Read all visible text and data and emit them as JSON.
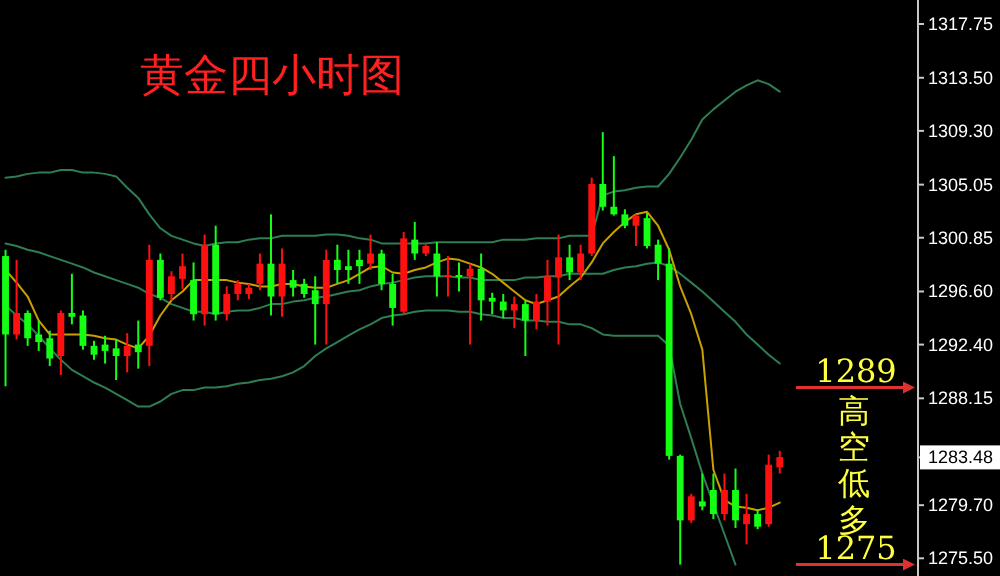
{
  "chart_data": {
    "type": "candlestick",
    "title": "黄金四小时图",
    "tick_labels": "y",
    "categories": [
      null,
      null,
      null,
      null,
      null,
      null,
      null,
      null,
      null,
      null,
      null,
      null,
      null,
      null,
      null,
      null,
      null,
      null,
      null,
      null,
      null,
      null,
      null,
      null,
      null,
      null,
      null,
      null,
      null,
      null,
      null,
      null,
      null,
      null,
      null,
      null,
      null,
      null,
      null,
      null,
      null,
      null,
      null,
      null,
      null,
      null,
      null,
      null,
      null,
      null,
      null,
      null,
      null,
      null,
      null,
      null,
      null,
      null,
      null,
      null,
      null,
      null,
      null,
      null,
      null,
      null,
      null,
      null,
      null,
      null,
      null,
      null,
      null,
      null,
      null,
      null,
      null,
      null,
      null,
      null,
      null,
      null,
      null
    ],
    "ylim": [
      1274.1,
      1319.65
    ],
    "yticks": [
      {
        "value": 1317.75,
        "label": "1317.75"
      },
      {
        "value": 1313.5,
        "label": "1313.50"
      },
      {
        "value": 1309.3,
        "label": "1309.30"
      },
      {
        "value": 1305.05,
        "label": "1305.05"
      },
      {
        "value": 1300.85,
        "label": "1300.85"
      },
      {
        "value": 1296.6,
        "label": "1296.60"
      },
      {
        "value": 1292.4,
        "label": "1292.40"
      },
      {
        "value": 1288.15,
        "label": "1288.15"
      },
      {
        "value": 1283.48,
        "label": "1283.48"
      },
      {
        "value": 1279.7,
        "label": "1279.70"
      },
      {
        "value": 1275.5,
        "label": "1275.50"
      }
    ],
    "ohlc": [
      [
        1299.4,
        1299.9,
        1289.1,
        1293.2
      ],
      [
        1293.2,
        1299.1,
        1292.8,
        1294.9
      ],
      [
        1294.9,
        1295.1,
        1292.3,
        1292.9
      ],
      [
        1293.2,
        1294.3,
        1291.9,
        1292.6
      ],
      [
        1292.9,
        1293.5,
        1290.7,
        1291.3
      ],
      [
        1291.5,
        1295.1,
        1290.0,
        1294.9
      ],
      [
        1294.9,
        1298.0,
        1294.0,
        1294.6
      ],
      [
        1294.7,
        1295.1,
        1292.0,
        1292.3
      ],
      [
        1292.3,
        1292.7,
        1291.2,
        1291.6
      ],
      [
        1292.4,
        1293.1,
        1290.9,
        1291.9
      ],
      [
        1292.1,
        1292.8,
        1289.6,
        1291.5
      ],
      [
        1291.5,
        1293.3,
        1290.2,
        1292.3
      ],
      [
        1292.4,
        1294.3,
        1290.5,
        1291.8
      ],
      [
        1292.3,
        1300.3,
        1290.7,
        1299.1
      ],
      [
        1299.1,
        1299.6,
        1295.9,
        1296.1
      ],
      [
        1296.4,
        1298.2,
        1295.9,
        1297.8
      ],
      [
        1297.6,
        1299.6,
        1296.8,
        1298.6
      ],
      [
        1297.5,
        1298.9,
        1294.3,
        1294.8
      ],
      [
        1294.8,
        1301.1,
        1293.9,
        1300.3
      ],
      [
        1300.3,
        1301.8,
        1294.3,
        1294.8
      ],
      [
        1294.8,
        1297.0,
        1294.3,
        1296.4
      ],
      [
        1296.4,
        1297.5,
        1295.9,
        1297.2
      ],
      [
        1296.4,
        1297.2,
        1296.0,
        1296.9
      ],
      [
        1297.2,
        1299.6,
        1296.7,
        1298.8
      ],
      [
        1298.8,
        1302.7,
        1294.7,
        1296.2
      ],
      [
        1296.2,
        1300.0,
        1294.6,
        1298.8
      ],
      [
        1297.5,
        1298.3,
        1296.2,
        1296.9
      ],
      [
        1297.2,
        1297.6,
        1296.1,
        1296.4
      ],
      [
        1296.7,
        1297.8,
        1292.4,
        1295.6
      ],
      [
        1295.6,
        1299.9,
        1292.4,
        1299.1
      ],
      [
        1299.1,
        1300.3,
        1297.2,
        1298.3
      ],
      [
        1298.6,
        1299.9,
        1297.2,
        1298.3
      ],
      [
        1299.1,
        1299.9,
        1297.2,
        1298.6
      ],
      [
        1298.8,
        1301.1,
        1298.3,
        1299.6
      ],
      [
        1299.6,
        1299.9,
        1296.7,
        1297.2
      ],
      [
        1297.2,
        1298.0,
        1293.9,
        1295.3
      ],
      [
        1295.0,
        1301.3,
        1294.8,
        1300.8
      ],
      [
        1300.7,
        1302.1,
        1299.1,
        1299.6
      ],
      [
        1299.6,
        1300.3,
        1299.4,
        1300.2
      ],
      [
        1299.6,
        1300.5,
        1296.2,
        1297.8
      ],
      [
        1297.8,
        1299.4,
        1296.2,
        1297.9
      ],
      [
        1297.9,
        1298.9,
        1296.6,
        1297.8
      ],
      [
        1297.8,
        1298.8,
        1292.4,
        1298.4
      ],
      [
        1298.4,
        1299.6,
        1294.3,
        1295.9
      ],
      [
        1296.1,
        1296.5,
        1294.8,
        1295.8
      ],
      [
        1295.8,
        1296.4,
        1294.5,
        1295.1
      ],
      [
        1295.1,
        1296.2,
        1293.7,
        1295.6
      ],
      [
        1295.6,
        1295.9,
        1291.5,
        1294.3
      ],
      [
        1294.3,
        1296.4,
        1293.6,
        1295.8
      ],
      [
        1295.8,
        1299.1,
        1293.9,
        1297.8
      ],
      [
        1297.7,
        1301.1,
        1292.4,
        1299.3
      ],
      [
        1299.3,
        1300.3,
        1297.5,
        1298.1
      ],
      [
        1298.1,
        1300.3,
        1297.5,
        1299.6
      ],
      [
        1299.6,
        1305.6,
        1299.4,
        1305.1
      ],
      [
        1305.1,
        1309.2,
        1303.0,
        1303.3
      ],
      [
        1303.3,
        1307.3,
        1302.6,
        1302.7
      ],
      [
        1302.7,
        1303.1,
        1301.6,
        1301.8
      ],
      [
        1301.8,
        1302.7,
        1300.2,
        1302.6
      ],
      [
        1302.4,
        1302.8,
        1300.0,
        1300.2
      ],
      [
        1300.3,
        1300.7,
        1297.5,
        1298.8
      ],
      [
        1298.8,
        1300.0,
        1283.3,
        1283.6
      ],
      [
        1283.6,
        1283.7,
        1275.0,
        1278.5
      ],
      [
        1278.5,
        1280.6,
        1278.3,
        1280.4
      ],
      [
        1280.0,
        1282.2,
        1279.3,
        1279.6
      ],
      [
        1280.9,
        1282.2,
        1278.6,
        1279.0
      ],
      [
        1279.0,
        1282.2,
        1278.5,
        1280.9
      ],
      [
        1280.9,
        1282.6,
        1277.9,
        1278.5
      ],
      [
        1278.2,
        1280.6,
        1276.6,
        1279.0
      ],
      [
        1279.0,
        1279.3,
        1277.8,
        1278.0
      ],
      [
        1278.2,
        1283.7,
        1278.0,
        1282.9
      ],
      [
        1282.7,
        1284.0,
        1282.2,
        1283.5
      ],
      null,
      null,
      null,
      null,
      null,
      null,
      null,
      null,
      null,
      null,
      null,
      null
    ],
    "colors": [
      "#14ff14",
      "#ff1010",
      "#14ff14",
      "#14ff14",
      "#14ff14",
      "#ff1010",
      "#14ff14",
      "#14ff14",
      "#14ff14",
      "#14ff14",
      "#14ff14",
      "#ff1010",
      "#14ff14",
      "#ff1010",
      "#14ff14",
      "#ff1010",
      "#ff1010",
      "#14ff14",
      "#ff1010",
      "#14ff14",
      "#ff1010",
      "#ff1010",
      "#ff1010",
      "#ff1010",
      "#14ff14",
      "#ff1010",
      "#14ff14",
      "#14ff14",
      "#14ff14",
      "#ff1010",
      "#14ff14",
      "#14ff14",
      "#14ff14",
      "#ff1010",
      "#14ff14",
      "#14ff14",
      "#ff1010",
      "#14ff14",
      "#ff1010",
      "#14ff14",
      "#ff1010",
      "#14ff14",
      "#ff1010",
      "#14ff14",
      "#14ff14",
      "#14ff14",
      "#ff1010",
      "#14ff14",
      "#ff1010",
      "#ff1010",
      "#ff1010",
      "#14ff14",
      "#ff1010",
      "#ff1010",
      "#14ff14",
      "#14ff14",
      "#14ff14",
      "#ff1010",
      "#14ff14",
      "#14ff14",
      "#14ff14",
      "#14ff14",
      "#ff1010",
      "#14ff14",
      "#14ff14",
      "#ff1010",
      "#14ff14",
      "#ff1010",
      "#14ff14",
      "#ff1010",
      "#ff1010",
      null,
      null,
      null,
      null,
      null,
      null,
      null,
      null,
      null,
      null,
      null,
      null
    ],
    "series": [
      {
        "type": "line",
        "color": "#2f7d52",
        "values": [
          1305.6,
          1305.7,
          1305.9,
          1306.0,
          1306.0,
          1306.2,
          1306.2,
          1306.0,
          1306.0,
          1305.9,
          1305.7,
          1304.8,
          1304.0,
          1302.7,
          1301.6,
          1301.0,
          1300.7,
          1300.4,
          1300.2,
          1300.4,
          1300.5,
          1300.5,
          1300.7,
          1300.8,
          1300.8,
          1301.0,
          1301.0,
          1301.0,
          1301.0,
          1301.1,
          1301.1,
          1301.0,
          1300.8,
          1300.7,
          1300.4,
          1300.4,
          1300.4,
          1300.4,
          1300.4,
          1300.5,
          1300.5,
          1300.5,
          1300.5,
          1300.5,
          1300.5,
          1300.7,
          1300.7,
          1300.7,
          1300.8,
          1300.8,
          1300.8,
          1301.0,
          1301.0,
          1301.0,
          1304.2,
          1304.5,
          1304.6,
          1304.8,
          1304.9,
          1304.9,
          1305.9,
          1307.2,
          1308.6,
          1310.2,
          1311.0,
          1311.7,
          1312.4,
          1312.9,
          1313.3,
          1313.0,
          1312.4,
          null,
          null,
          null,
          null,
          null,
          null,
          null,
          null,
          null,
          null,
          null,
          null
        ]
      },
      {
        "type": "line",
        "color": "#2f7d52",
        "values": [
          1300.4,
          1300.2,
          1299.9,
          1299.7,
          1299.4,
          1299.1,
          1298.8,
          1298.5,
          1298.1,
          1297.8,
          1297.5,
          1297.2,
          1296.9,
          1296.4,
          1296.1,
          1295.6,
          1295.3,
          1295.0,
          1295.0,
          1294.8,
          1295.0,
          1295.1,
          1295.1,
          1295.3,
          1295.6,
          1295.6,
          1295.8,
          1295.9,
          1296.1,
          1296.2,
          1296.4,
          1296.6,
          1296.7,
          1297.0,
          1297.2,
          1297.3,
          1297.5,
          1297.7,
          1297.8,
          1297.8,
          1297.8,
          1297.7,
          1297.7,
          1297.5,
          1297.5,
          1297.5,
          1297.5,
          1297.7,
          1297.7,
          1297.8,
          1297.8,
          1298.0,
          1298.0,
          1298.0,
          1298.0,
          1298.3,
          1298.5,
          1298.6,
          1298.8,
          1298.9,
          1298.6,
          1298.0,
          1297.3,
          1296.6,
          1295.8,
          1295.0,
          1294.2,
          1293.2,
          1292.4,
          1291.6,
          1290.9,
          null,
          null,
          null,
          null,
          null,
          null,
          null,
          null,
          null,
          null,
          null,
          null
        ]
      },
      {
        "type": "line",
        "color": "#2f7d52",
        "values": [
          1295.5,
          1294.7,
          1294.0,
          1293.1,
          1292.1,
          1291.2,
          1290.4,
          1289.9,
          1289.4,
          1289.0,
          1288.5,
          1288.0,
          1287.5,
          1287.5,
          1287.9,
          1288.5,
          1288.8,
          1288.8,
          1289.0,
          1289.0,
          1289.1,
          1289.3,
          1289.4,
          1289.6,
          1289.7,
          1289.9,
          1290.2,
          1290.7,
          1291.5,
          1292.1,
          1292.6,
          1293.1,
          1293.6,
          1294.0,
          1294.5,
          1294.7,
          1294.8,
          1295.0,
          1295.1,
          1295.1,
          1295.1,
          1295.0,
          1295.0,
          1294.8,
          1294.7,
          1294.5,
          1294.5,
          1294.3,
          1294.3,
          1294.2,
          1294.2,
          1294.0,
          1294.0,
          1293.7,
          1293.2,
          1293.1,
          1293.1,
          1293.1,
          1293.1,
          1293.1,
          1292.3,
          1287.7,
          1285.0,
          1282.2,
          1279.8,
          1277.4,
          1275.0,
          null,
          null,
          null,
          null,
          null,
          null,
          null,
          null,
          null,
          null,
          null,
          null,
          null,
          null,
          null,
          null
        ]
      },
      {
        "type": "line",
        "color": "#c8a000",
        "values": [
          1298.3,
          1297.3,
          1296.2,
          1294.3,
          1293.2,
          1293.2,
          1293.2,
          1293.2,
          1293.1,
          1292.9,
          1292.8,
          1292.4,
          1292.1,
          1293.1,
          1294.7,
          1295.9,
          1296.6,
          1297.5,
          1297.5,
          1297.5,
          1297.5,
          1297.3,
          1297.2,
          1297.0,
          1297.0,
          1297.2,
          1297.2,
          1297.0,
          1296.9,
          1296.9,
          1297.2,
          1297.5,
          1298.0,
          1298.5,
          1298.6,
          1298.1,
          1298.0,
          1298.3,
          1298.5,
          1298.9,
          1299.2,
          1299.1,
          1298.8,
          1298.5,
          1298.0,
          1297.3,
          1296.6,
          1295.9,
          1295.6,
          1295.9,
          1296.2,
          1297.0,
          1297.7,
          1298.9,
          1300.4,
          1301.3,
          1302.1,
          1302.7,
          1302.9,
          1301.8,
          1299.9,
          1297.0,
          1294.8,
          1292.0,
          1282.5,
          1280.1,
          1279.6,
          1279.5,
          1279.3,
          1279.5,
          1279.9,
          null,
          null,
          null,
          null,
          null,
          null,
          null,
          null,
          null,
          null,
          null,
          null
        ]
      }
    ],
    "ref_lines": [
      {
        "axis": "y",
        "value": 1289,
        "label": "1289",
        "color": "#e03030"
      },
      {
        "axis": "y",
        "value": 1275,
        "label": "1275",
        "color": "#e03030"
      }
    ],
    "annotations": [
      "高空低多"
    ]
  }
}
